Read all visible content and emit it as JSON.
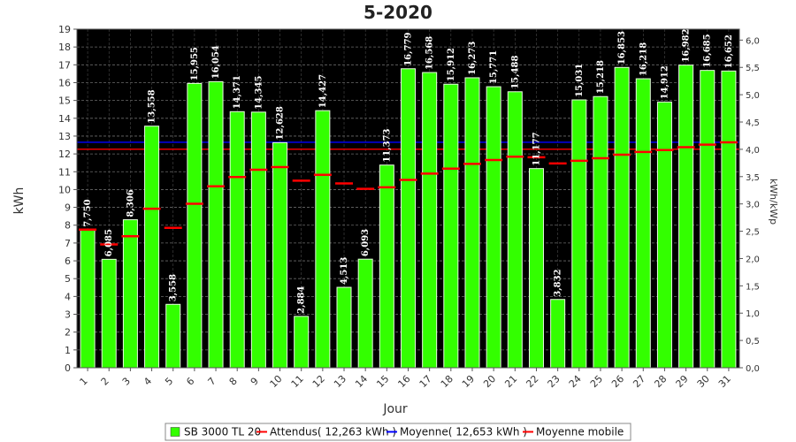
{
  "chart_data": {
    "type": "bar",
    "title": "5-2020",
    "xlabel": "Jour",
    "ylabel": "kWh",
    "y2label": "kWh/kWp",
    "ylim": [
      0,
      19
    ],
    "y2lim": [
      0,
      6.2
    ],
    "grid": true,
    "legend_position": "bottom",
    "categories": [
      "1",
      "2",
      "3",
      "4",
      "5",
      "6",
      "7",
      "8",
      "9",
      "10",
      "11",
      "12",
      "13",
      "14",
      "15",
      "16",
      "17",
      "18",
      "19",
      "20",
      "21",
      "22",
      "23",
      "24",
      "25",
      "26",
      "27",
      "28",
      "29",
      "30",
      "31"
    ],
    "data_labels": [
      "7,750",
      "6,085",
      "8,306",
      "13,558",
      "3,558",
      "15,955",
      "16,054",
      "14,371",
      "14,345",
      "12,628",
      "2,884",
      "14,427",
      "4,513",
      "6,093",
      "11,373",
      "16,779",
      "16,568",
      "15,912",
      "16,273",
      "15,771",
      "15,488",
      "11,177",
      "3,832",
      "15,031",
      "15,218",
      "16,853",
      "16,218",
      "14,912",
      "16,982",
      "16,685",
      "16,652"
    ],
    "series": [
      {
        "name": "SB 3000 TL 20",
        "type": "bar",
        "color": "#33ff00",
        "values": [
          7.75,
          6.085,
          8.306,
          13.558,
          3.558,
          15.955,
          16.054,
          14.371,
          14.345,
          12.628,
          2.884,
          14.427,
          4.513,
          6.093,
          11.373,
          16.779,
          16.568,
          15.912,
          16.273,
          15.771,
          15.488,
          11.177,
          3.832,
          15.031,
          15.218,
          16.853,
          16.218,
          14.912,
          16.982,
          16.685,
          16.652
        ]
      },
      {
        "name": "Attendus( 12,263 kWh )",
        "type": "hline",
        "color": "#ff0000",
        "value": 12.263
      },
      {
        "name": "Moyenne( 12,653 kWh )",
        "type": "hline",
        "color": "#0000ff",
        "value": 12.653
      },
      {
        "name": "Moyenne mobile",
        "type": "moving-average",
        "color": "#ff0000",
        "values": [
          7.75,
          6.918,
          7.38,
          8.925,
          7.851,
          9.202,
          10.181,
          10.705,
          11.11,
          11.262,
          10.5,
          10.828,
          10.342,
          10.038,
          10.127,
          10.543,
          10.897,
          11.176,
          11.444,
          11.66,
          11.842,
          11.811,
          11.464,
          11.613,
          11.758,
          11.954,
          12.112,
          12.213,
          12.377,
          12.52,
          12.653
        ]
      }
    ],
    "yticks": [
      "0",
      "1",
      "2",
      "3",
      "4",
      "5",
      "6",
      "7",
      "8",
      "9",
      "10",
      "11",
      "12",
      "13",
      "14",
      "15",
      "16",
      "17",
      "18",
      "19"
    ],
    "y2ticks": [
      "0,0",
      "0,5",
      "1,0",
      "1,5",
      "2,0",
      "2,5",
      "3,0",
      "3,5",
      "4,0",
      "4,5",
      "5,0",
      "5,5",
      "6,0"
    ]
  }
}
